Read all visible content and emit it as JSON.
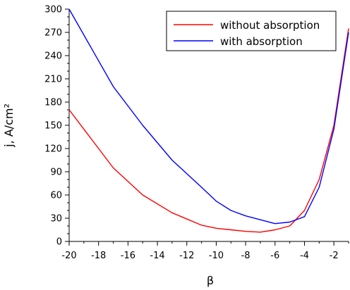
{
  "chart_data": {
    "type": "line",
    "title": "",
    "xlabel": "β",
    "ylabel": "j, A/cm²",
    "xlim": [
      -20,
      -1
    ],
    "ylim": [
      0,
      300
    ],
    "x_ticks": [
      -20,
      -18,
      -16,
      -14,
      -12,
      -10,
      -8,
      -6,
      -4,
      -2
    ],
    "y_ticks": [
      0,
      30,
      60,
      90,
      120,
      150,
      180,
      210,
      240,
      270,
      300
    ],
    "grid": false,
    "legend_position": "top-right",
    "series": [
      {
        "name": "without absorption",
        "color": "#ff0000",
        "x": [
          -20,
          -17,
          -15,
          -13,
          -11,
          -10,
          -9,
          -8,
          -7,
          -6,
          -5,
          -4,
          -3,
          -2,
          -1
        ],
        "y": [
          170,
          95,
          60,
          37,
          21,
          17,
          15,
          13,
          12,
          15,
          20,
          40,
          80,
          150,
          275
        ]
      },
      {
        "name": "with absorption",
        "color": "#0000ff",
        "x": [
          -20,
          -17,
          -15,
          -13,
          -11,
          -10,
          -9,
          -8,
          -7,
          -6,
          -5,
          -4,
          -3,
          -2,
          -1
        ],
        "y": [
          300,
          200,
          150,
          105,
          70,
          52,
          40,
          33,
          28,
          23,
          25,
          32,
          70,
          145,
          270
        ]
      }
    ]
  }
}
